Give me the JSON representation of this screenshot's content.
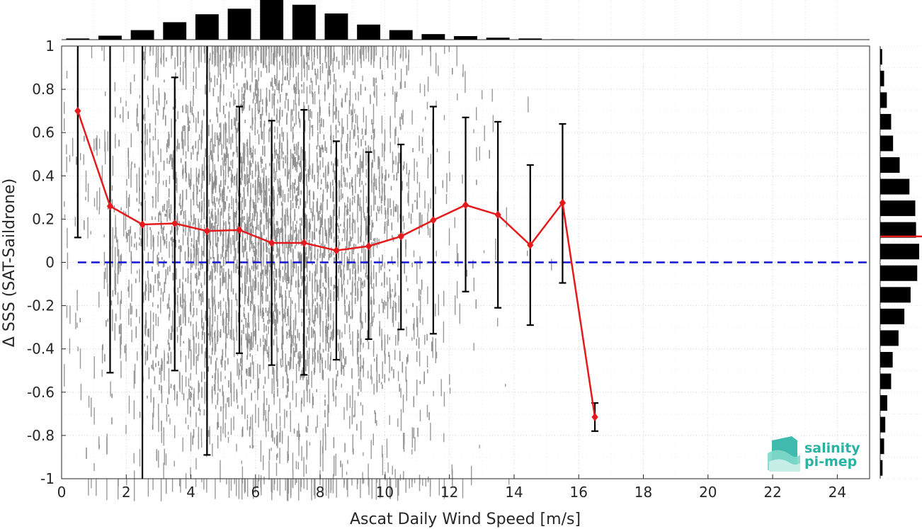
{
  "chart_data": {
    "type": "line",
    "xlabel": "Ascat Daily Wind Speed [m/s]",
    "ylabel": "Δ SSS (SAT-Saildrone)",
    "xlim": [
      0,
      25
    ],
    "ylim": [
      -1,
      1
    ],
    "xticks": [
      0,
      2,
      4,
      6,
      8,
      10,
      12,
      14,
      16,
      18,
      20,
      22,
      24
    ],
    "yticks": [
      -1,
      -0.8,
      -0.6,
      -0.4,
      -0.2,
      0,
      0.2,
      0.4,
      0.6,
      0.8,
      1
    ],
    "ytick_labels": [
      "-1",
      "-0.8",
      "-0.6",
      "-0.4",
      "-0.2",
      "0",
      "0.2",
      "0.4",
      "0.6",
      "0.8",
      "1"
    ],
    "grid": true,
    "series": [
      {
        "type": "line-errorbar",
        "color": "#e41a1c",
        "x": [
          0.5,
          1.5,
          2.5,
          3.5,
          4.5,
          5.5,
          6.5,
          7.5,
          8.5,
          9.5,
          10.5,
          11.5,
          12.5,
          13.5,
          14.5,
          15.5,
          16.5
        ],
        "y": [
          0.7,
          0.26,
          0.175,
          0.18,
          0.145,
          0.15,
          0.09,
          0.09,
          0.055,
          0.075,
          0.12,
          0.195,
          0.265,
          0.22,
          0.08,
          0.275,
          -0.715
        ],
        "err_low": [
          0.115,
          -0.51,
          -1.0,
          -0.5,
          -0.89,
          -0.42,
          -0.475,
          -0.52,
          -0.45,
          -0.355,
          -0.31,
          -0.33,
          -0.135,
          -0.21,
          -0.29,
          -0.095,
          -0.78
        ],
        "err_high": [
          1.0,
          1.0,
          1.0,
          0.855,
          1.0,
          0.72,
          0.655,
          0.705,
          0.56,
          0.51,
          0.545,
          0.72,
          0.67,
          0.65,
          0.45,
          0.64,
          -0.65
        ]
      },
      {
        "type": "reference-line",
        "y": 0,
        "color": "#1414d2",
        "style": "dashed"
      }
    ],
    "scatter_cloud": {
      "color": "#878787",
      "description_values": {
        "x_range": [
          0,
          16.5
        ],
        "y_range": [
          -1,
          1
        ]
      }
    },
    "top_histogram": {
      "bin_centers": [
        0.5,
        1.5,
        2.5,
        3.5,
        4.5,
        5.5,
        6.5,
        7.5,
        8.5,
        9.5,
        10.5,
        11.5,
        12.5,
        13.5,
        14.5,
        15.5
      ],
      "relative_counts": [
        0.03,
        0.1,
        0.24,
        0.44,
        0.64,
        0.78,
        1.0,
        0.88,
        0.66,
        0.38,
        0.24,
        0.14,
        0.09,
        0.05,
        0.03,
        0.01
      ]
    },
    "right_histogram": {
      "bin_centers": [
        0.95,
        0.85,
        0.75,
        0.65,
        0.55,
        0.45,
        0.35,
        0.25,
        0.15,
        0.05,
        -0.05,
        -0.15,
        -0.25,
        -0.35,
        -0.45,
        -0.55,
        -0.65,
        -0.75,
        -0.85,
        -0.95
      ],
      "relative_counts": [
        0.05,
        0.1,
        0.17,
        0.28,
        0.33,
        0.5,
        0.75,
        0.9,
        0.92,
        1.0,
        0.95,
        0.78,
        0.62,
        0.47,
        0.32,
        0.28,
        0.18,
        0.13,
        0.1,
        0.06
      ],
      "mean_marker": 0.12,
      "mean_marker_color": "#e41a1c"
    }
  },
  "logo": {
    "line1": "salinity",
    "line2": "pi-mep",
    "color": "#2ab3a3"
  }
}
